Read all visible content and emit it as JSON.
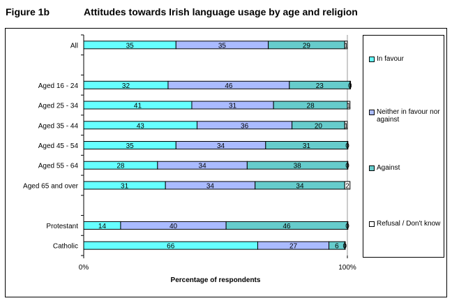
{
  "figure_label": "Figure 1b",
  "chart_data": {
    "type": "bar",
    "orientation": "horizontal-stacked-100",
    "title": "Attitudes towards Irish language usage by age and religion",
    "xlabel": "Percentage of respondents",
    "ylabel": "",
    "xlim": [
      0,
      100
    ],
    "x_tick_labels": [
      "0%",
      "100%"
    ],
    "legend_position": "right",
    "categories": [
      "All",
      "",
      "Aged 16 - 24",
      "Aged 25 - 34",
      "Aged 35 - 44",
      "Aged 45 - 54",
      "Aged 55 - 64",
      "Aged 65 and over",
      "",
      "Protestant",
      "Catholic"
    ],
    "series": [
      {
        "name": "In favour",
        "color": "#66ffff",
        "values": [
          35,
          null,
          32,
          41,
          43,
          35,
          28,
          31,
          null,
          14,
          66
        ]
      },
      {
        "name": "Neither in favour nor against",
        "color": "#aabbff",
        "values": [
          35,
          null,
          46,
          31,
          36,
          34,
          34,
          34,
          null,
          40,
          27
        ]
      },
      {
        "name": "Against",
        "color": "#66cccc",
        "values": [
          29,
          null,
          23,
          28,
          20,
          31,
          38,
          34,
          null,
          46,
          6
        ]
      },
      {
        "name": "Refusal / Don't know",
        "color": "#ffffff",
        "values": [
          1,
          null,
          0,
          1,
          1,
          0,
          0,
          2,
          null,
          0,
          0
        ]
      }
    ]
  }
}
